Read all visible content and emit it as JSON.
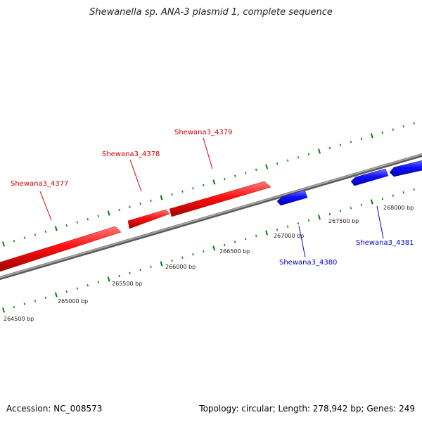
{
  "title": "Shewanella sp. ANA-3 plasmid 1, complete sequence",
  "footer": {
    "accession": "Accession: NC_008573",
    "summary": "Topology: circular; Length: 278,942 bp; Genes: 249"
  },
  "colors": {
    "forward_gene": "#ff0000",
    "reverse_gene": "#0000ff",
    "backbone": "#808080",
    "ticks": "#008000"
  },
  "forward_genes": [
    {
      "name": "Shewana3_4377"
    },
    {
      "name": "Shewana3_4378"
    },
    {
      "name": "Shewana3_4379"
    }
  ],
  "reverse_genes": [
    {
      "name": "Shewana3_4380"
    },
    {
      "name": "Shewana3_4381"
    }
  ],
  "bp_labels": [
    "264500 bp",
    "265000 bp",
    "265500 bp",
    "266000 bp",
    "266500 bp",
    "267000 bp",
    "267500 bp",
    "268000 bp"
  ]
}
